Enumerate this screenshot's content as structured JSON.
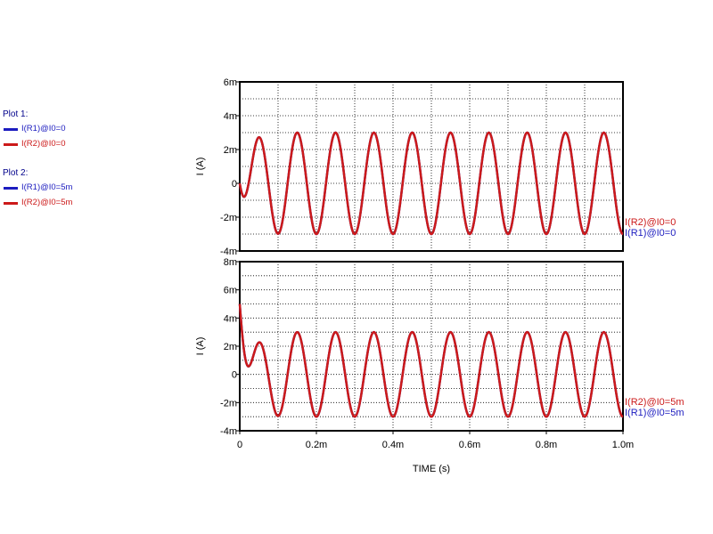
{
  "legend": {
    "groups": [
      {
        "title": "Plot 1:",
        "entries": [
          {
            "label": "I(R1)@I0=0",
            "color": "#1c1cbf"
          },
          {
            "label": "I(R2)@I0=0",
            "color": "#cc1a1a"
          }
        ]
      },
      {
        "title": "Plot 2:",
        "entries": [
          {
            "label": "I(R1)@I0=5m",
            "color": "#1c1cbf"
          },
          {
            "label": "I(R2)@I0=5m",
            "color": "#cc1a1a"
          }
        ]
      }
    ]
  },
  "chart_data": [
    {
      "type": "line",
      "ylabel": "I  (A)",
      "ylim": [
        -0.004,
        0.006
      ],
      "yticks": [
        {
          "value": 0.006,
          "label": "6m"
        },
        {
          "value": 0.004,
          "label": "4m"
        },
        {
          "value": 0.002,
          "label": "2m"
        },
        {
          "value": 0,
          "label": "0"
        },
        {
          "value": -0.002,
          "label": "-2m"
        },
        {
          "value": -0.004,
          "label": "-4m"
        }
      ],
      "xlim": [
        0,
        0.001
      ],
      "grid": true,
      "wave": {
        "amplitude": 0.003,
        "frequency_hz": 10000,
        "initial_current": 0,
        "decay_tau_s": 2.2e-05
      },
      "series": [
        {
          "name": "I(R1)@I0=0",
          "color": "#1c1cbf"
        },
        {
          "name": "I(R2)@I0=0",
          "color": "#cc1a1a"
        }
      ],
      "end_labels": [
        {
          "text": "I(R2)@I0=0",
          "color": "#cc1a1a"
        },
        {
          "text": "I(R1)@I0=0",
          "color": "#1c1cbf"
        }
      ]
    },
    {
      "type": "line",
      "ylabel": "I  (A)",
      "ylim": [
        -0.004,
        0.008
      ],
      "yticks": [
        {
          "value": 0.008,
          "label": "8m"
        },
        {
          "value": 0.006,
          "label": "6m"
        },
        {
          "value": 0.004,
          "label": "4m"
        },
        {
          "value": 0.002,
          "label": "2m"
        },
        {
          "value": 0,
          "label": "0"
        },
        {
          "value": -0.002,
          "label": "-2m"
        },
        {
          "value": -0.004,
          "label": "-4m"
        }
      ],
      "xlim": [
        0,
        0.001
      ],
      "grid": true,
      "wave": {
        "amplitude": 0.003,
        "frequency_hz": 10000,
        "initial_current": 0.005,
        "decay_tau_s": 2.2e-05
      },
      "series": [
        {
          "name": "I(R1)@I0=5m",
          "color": "#1c1cbf"
        },
        {
          "name": "I(R2)@I0=5m",
          "color": "#cc1a1a"
        }
      ],
      "end_labels": [
        {
          "text": "I(R2)@I0=5m",
          "color": "#cc1a1a"
        },
        {
          "text": "I(R1)@I0=5m",
          "color": "#1c1cbf"
        }
      ]
    }
  ],
  "xaxis": {
    "label": "TIME  (s)",
    "ticks": [
      {
        "value": 0,
        "label": "0"
      },
      {
        "value": 0.0002,
        "label": "0.2m"
      },
      {
        "value": 0.0004,
        "label": "0.4m"
      },
      {
        "value": 0.0006,
        "label": "0.6m"
      },
      {
        "value": 0.0008,
        "label": "0.8m"
      },
      {
        "value": 0.001,
        "label": "1.0m"
      }
    ]
  }
}
